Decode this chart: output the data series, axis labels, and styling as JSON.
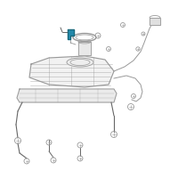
{
  "bg_color": "#ffffff",
  "line_color": "#999999",
  "dark_line": "#666666",
  "teal_color": "#2288aa",
  "fig_width": 2.0,
  "fig_height": 2.0,
  "dpi": 100
}
